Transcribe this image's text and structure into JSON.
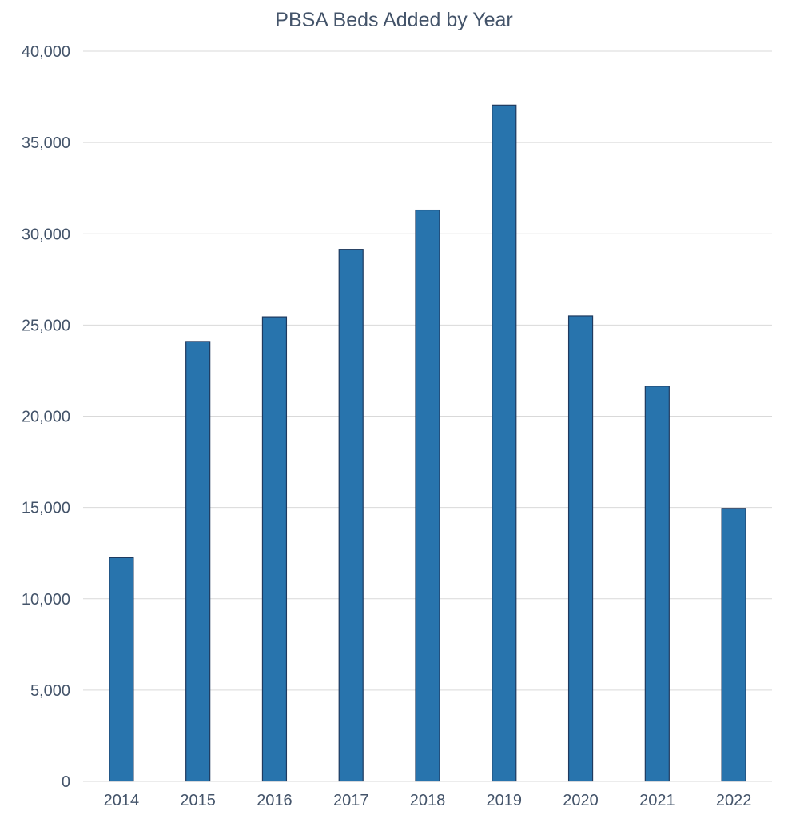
{
  "chart_data": {
    "type": "bar",
    "title": "PBSA Beds Added  by Year",
    "xlabel": "",
    "ylabel": "",
    "categories": [
      "2014",
      "2015",
      "2016",
      "2017",
      "2018",
      "2019",
      "2020",
      "2021",
      "2022"
    ],
    "values": [
      12250,
      24100,
      25450,
      29150,
      31300,
      37050,
      25500,
      21650,
      14950
    ],
    "ylim": [
      0,
      40000
    ],
    "yticks": [
      0,
      5000,
      10000,
      15000,
      20000,
      25000,
      30000,
      35000,
      40000
    ],
    "ytick_labels": [
      "0",
      "5,000",
      "10,000",
      "15,000",
      "20,000",
      "25,000",
      "30,000",
      "35,000",
      "40,000"
    ],
    "grid": true,
    "legend": "none",
    "bar_color": "#2874ad",
    "bar_edge_color": "#1f3a5f"
  }
}
